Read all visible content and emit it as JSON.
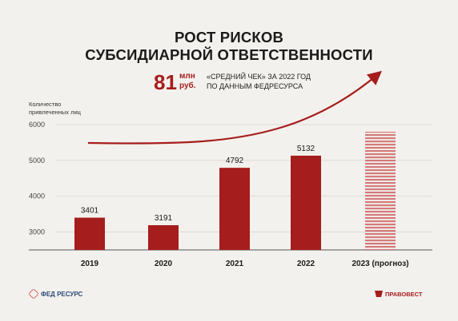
{
  "title": {
    "line1": "РОСТ РИСКОВ",
    "line2": "СУБСИДИАРНОЙ ОТВЕТСТВЕННОСТИ"
  },
  "stat": {
    "value": "81",
    "unit_line1": "млн",
    "unit_line2": "руб.",
    "desc_line1": "«СРЕДНИЙ ЧЕК» ЗА 2022 ГОД",
    "desc_line2": "ПО ДАННЫМ ФЕДРЕСУРСА"
  },
  "logos": {
    "left": "ФЕД РЕСУРС",
    "right": "ПРАВОВЕСТ"
  },
  "colors": {
    "accent": "#a61d1d",
    "forecast_stripe": "#d47a7a"
  },
  "chart_data": {
    "type": "bar",
    "categories": [
      "2019",
      "2020",
      "2021",
      "2022",
      "2023 (прогноз)"
    ],
    "values": [
      3401,
      3191,
      4792,
      5132,
      5800
    ],
    "data_labels": [
      "3401",
      "3191",
      "4792",
      "5132",
      ""
    ],
    "forecast": [
      false,
      false,
      false,
      false,
      true
    ],
    "ylabel_line1": "Количество",
    "ylabel_line2": "привлеченных лиц",
    "yticks": [
      3000,
      4000,
      5000,
      6000
    ],
    "ylim": [
      2500,
      6300
    ],
    "grid": true,
    "trend_arrow": true
  }
}
